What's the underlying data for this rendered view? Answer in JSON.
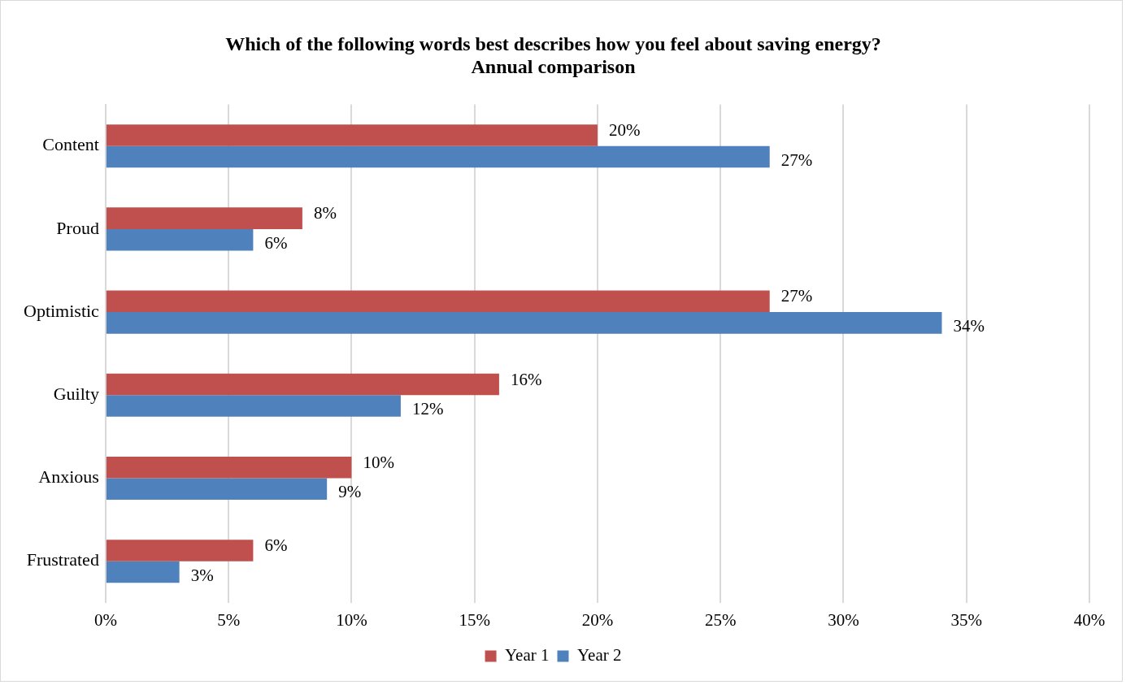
{
  "chart_data": {
    "type": "bar",
    "orientation": "horizontal",
    "title": "Which of the following words best describes how you feel about saving energy?\nAnnual comparison",
    "categories": [
      "Content",
      "Proud",
      "Optimistic",
      "Guilty",
      "Anxious",
      "Frustrated"
    ],
    "series": [
      {
        "name": "Year 1",
        "color": "#c0504d",
        "values": [
          20,
          8,
          27,
          16,
          10,
          6
        ],
        "value_labels": [
          "20%",
          "8%",
          "27%",
          "16%",
          "10%",
          "6%"
        ]
      },
      {
        "name": "Year 2",
        "color": "#4f81bd",
        "values": [
          27,
          6,
          34,
          12,
          9,
          3
        ],
        "value_labels": [
          "27%",
          "6%",
          "34%",
          "12%",
          "9%",
          "3%"
        ]
      }
    ],
    "xlim": [
      0,
      40
    ],
    "xticks": [
      {
        "value": 0,
        "label": "0%"
      },
      {
        "value": 5,
        "label": "5%"
      },
      {
        "value": 10,
        "label": "10%"
      },
      {
        "value": 15,
        "label": "15%"
      },
      {
        "value": 20,
        "label": "20%"
      },
      {
        "value": 25,
        "label": "25%"
      },
      {
        "value": 30,
        "label": "30%"
      },
      {
        "value": 35,
        "label": "35%"
      },
      {
        "value": 40,
        "label": "40%"
      }
    ],
    "grid": "x",
    "legend": "bottom"
  }
}
